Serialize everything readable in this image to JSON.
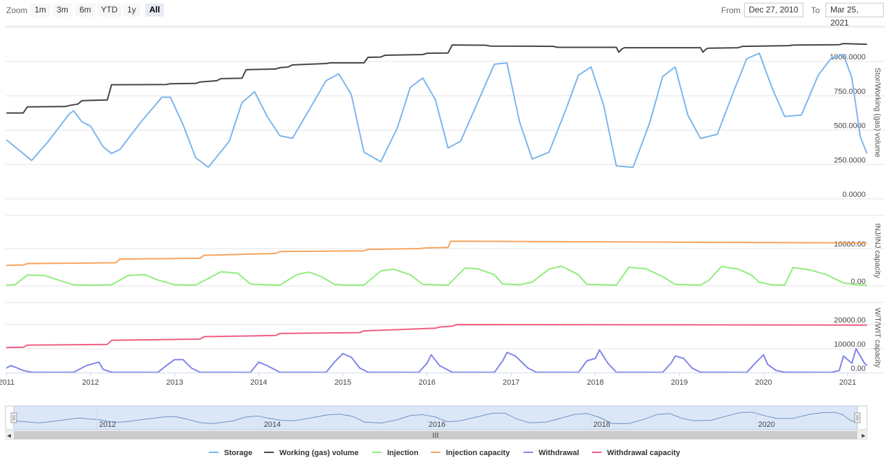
{
  "toolbar": {
    "zoom_label": "Zoom",
    "buttons": [
      "1m",
      "3m",
      "6m",
      "YTD",
      "1y",
      "All"
    ],
    "active_button": "All",
    "from_label": "From",
    "from_value": "Dec 27, 2010",
    "to_label": "To",
    "to_value": "Mar 25, 2021"
  },
  "colors": {
    "storage": "#7cb5ec",
    "working": "#434348",
    "injection": "#90ed7d",
    "injection_capacity": "#f7a35c",
    "withdrawal": "#8085e9",
    "withdrawal_capacity": "#f15c80",
    "navigator_fill": "#dbe7f7",
    "navigator_line": "#6f8fc0"
  },
  "legend": [
    {
      "key": "storage",
      "label": "Storage"
    },
    {
      "key": "working",
      "label": "Working (gas) volume"
    },
    {
      "key": "injection",
      "label": "Injection"
    },
    {
      "key": "injection_capacity",
      "label": "Injection capacity"
    },
    {
      "key": "withdrawal",
      "label": "Withdrawal"
    },
    {
      "key": "withdrawal_capacity",
      "label": "Withdrawal capacity"
    }
  ],
  "navigator": {
    "scrollbar_grip": "III",
    "year_labels": [
      "2012",
      "2014",
      "2016",
      "2018",
      "2020"
    ]
  },
  "chart_data": [
    {
      "type": "line",
      "ylabel": "Stor/Working (gas) volume",
      "ylim": [
        0,
        1000
      ],
      "yticks": [
        "0.0000",
        "250.0000",
        "500.0000",
        "750.0000",
        "1000.0000"
      ],
      "xlim": [
        2010.99,
        2021.23
      ],
      "series": [
        {
          "name": "Storage",
          "color_key": "storage",
          "x": [
            2011.0,
            2011.2,
            2011.3,
            2011.5,
            2011.75,
            2011.8,
            2011.9,
            2012.0,
            2012.15,
            2012.25,
            2012.35,
            2012.6,
            2012.85,
            2012.95,
            2013.1,
            2013.25,
            2013.4,
            2013.65,
            2013.8,
            2013.95,
            2014.1,
            2014.25,
            2014.4,
            2014.6,
            2014.8,
            2014.95,
            2015.1,
            2015.25,
            2015.45,
            2015.65,
            2015.8,
            2015.95,
            2016.1,
            2016.25,
            2016.4,
            2016.6,
            2016.8,
            2016.95,
            2017.1,
            2017.25,
            2017.45,
            2017.65,
            2017.8,
            2017.95,
            2018.1,
            2018.25,
            2018.45,
            2018.65,
            2018.8,
            2018.95,
            2019.1,
            2019.25,
            2019.45,
            2019.65,
            2019.8,
            2019.95,
            2020.1,
            2020.25,
            2020.45,
            2020.65,
            2020.8,
            2020.95,
            2021.05,
            2021.15,
            2021.23
          ],
          "y": [
            430,
            330,
            280,
            420,
            620,
            640,
            560,
            530,
            380,
            330,
            360,
            560,
            740,
            740,
            540,
            300,
            230,
            420,
            700,
            780,
            600,
            460,
            440,
            650,
            860,
            910,
            760,
            340,
            270,
            520,
            810,
            880,
            720,
            370,
            420,
            700,
            980,
            990,
            560,
            290,
            340,
            650,
            900,
            960,
            680,
            240,
            230,
            560,
            890,
            960,
            610,
            440,
            470,
            790,
            1020,
            1060,
            810,
            600,
            610,
            900,
            1020,
            1050,
            880,
            450,
            330
          ]
        },
        {
          "name": "Working (gas) volume",
          "color_key": "working",
          "x": [
            2011.0,
            2011.2,
            2011.25,
            2011.7,
            2011.75,
            2011.85,
            2011.9,
            2012.2,
            2012.25,
            2012.9,
            2012.95,
            2013.25,
            2013.3,
            2013.5,
            2013.55,
            2013.8,
            2013.85,
            2014.2,
            2014.25,
            2014.35,
            2014.4,
            2014.8,
            2014.85,
            2015.25,
            2015.3,
            2015.45,
            2015.5,
            2015.95,
            2016.0,
            2016.25,
            2016.3,
            2016.7,
            2016.75,
            2017.5,
            2017.55,
            2018.25,
            2018.28,
            2018.32,
            2018.35,
            2019.25,
            2019.28,
            2019.32,
            2019.35,
            2019.7,
            2019.75,
            2020.3,
            2020.35,
            2020.9,
            2020.95,
            2021.23
          ],
          "y": [
            625,
            625,
            670,
            672,
            680,
            690,
            715,
            720,
            830,
            832,
            838,
            840,
            850,
            860,
            875,
            878,
            940,
            945,
            955,
            960,
            975,
            985,
            990,
            990,
            1030,
            1032,
            1045,
            1050,
            1060,
            1062,
            1120,
            1118,
            1112,
            1110,
            1103,
            1103,
            1068,
            1093,
            1100,
            1100,
            1068,
            1092,
            1097,
            1100,
            1110,
            1115,
            1119,
            1122,
            1130,
            1125
          ]
        }
      ]
    },
    {
      "type": "line",
      "ylabel": "INJ/INJ capacity",
      "ylim": [
        0,
        14000
      ],
      "yticks": [
        "0.00",
        "10000.00"
      ],
      "xlim": [
        2010.99,
        2021.23
      ],
      "series": [
        {
          "name": "Injection capacity",
          "color_key": "injection_capacity",
          "x": [
            2011.0,
            2011.2,
            2011.25,
            2012.3,
            2012.35,
            2013.3,
            2013.35,
            2014.2,
            2014.25,
            2015.25,
            2015.3,
            2015.9,
            2016.0,
            2016.25,
            2016.28,
            2021.23
          ],
          "y": [
            5500,
            5600,
            6000,
            6200,
            7200,
            7400,
            8200,
            8700,
            9200,
            9400,
            9800,
            10000,
            10200,
            10300,
            12000,
            11500
          ]
        },
        {
          "name": "Injection",
          "color_key": "injection",
          "x": [
            2011.0,
            2011.1,
            2011.25,
            2011.45,
            2011.6,
            2011.8,
            2012.0,
            2012.25,
            2012.45,
            2012.65,
            2012.8,
            2013.0,
            2013.25,
            2013.45,
            2013.55,
            2013.75,
            2013.9,
            2014.1,
            2014.25,
            2014.45,
            2014.6,
            2014.75,
            2014.9,
            2015.05,
            2015.25,
            2015.45,
            2015.6,
            2015.8,
            2015.95,
            2016.1,
            2016.25,
            2016.45,
            2016.6,
            2016.8,
            2016.9,
            2017.1,
            2017.25,
            2017.45,
            2017.6,
            2017.8,
            2017.9,
            2018.1,
            2018.25,
            2018.4,
            2018.6,
            2018.8,
            2018.95,
            2019.1,
            2019.25,
            2019.35,
            2019.5,
            2019.7,
            2019.85,
            2019.95,
            2020.1,
            2020.25,
            2020.35,
            2020.55,
            2020.75,
            2020.95,
            2021.1,
            2021.23
          ],
          "y": [
            200,
            300,
            2900,
            2800,
            1700,
            300,
            200,
            300,
            2800,
            3000,
            1600,
            300,
            200,
            2600,
            3800,
            3400,
            500,
            300,
            200,
            3000,
            3700,
            2400,
            400,
            200,
            200,
            4000,
            4500,
            3000,
            400,
            300,
            200,
            4800,
            4600,
            3000,
            500,
            300,
            1000,
            4500,
            5300,
            3000,
            400,
            300,
            200,
            5000,
            4600,
            2500,
            400,
            300,
            200,
            1500,
            5200,
            4500,
            3000,
            1000,
            300,
            200,
            4900,
            4300,
            3000,
            800,
            300,
            200
          ]
        }
      ]
    },
    {
      "type": "line",
      "ylabel": "W/T/WIT capacity",
      "ylim": [
        0,
        24000
      ],
      "yticks": [
        "0.00",
        "10000.00",
        "20000.00"
      ],
      "xlim": [
        2010.99,
        2021.23
      ],
      "series": [
        {
          "name": "Withdrawal capacity",
          "color_key": "withdrawal_capacity",
          "x": [
            2011.0,
            2011.2,
            2011.25,
            2012.2,
            2012.25,
            2013.3,
            2013.35,
            2014.2,
            2014.25,
            2015.2,
            2015.25,
            2016.1,
            2016.15,
            2016.3,
            2016.35,
            2021.23
          ],
          "y": [
            10500,
            10600,
            11500,
            11800,
            13500,
            14000,
            15000,
            15500,
            16300,
            16700,
            17400,
            18500,
            19000,
            19300,
            20000,
            19800
          ]
        },
        {
          "name": "Withdrawal",
          "color_key": "withdrawal",
          "x": [
            2011.0,
            2011.05,
            2011.1,
            2011.2,
            2011.3,
            2011.6,
            2011.8,
            2011.95,
            2012.1,
            2012.15,
            2012.25,
            2012.8,
            2012.9,
            2013.0,
            2013.1,
            2013.2,
            2013.3,
            2013.9,
            2014.0,
            2014.1,
            2014.25,
            2014.8,
            2014.9,
            2015.0,
            2015.1,
            2015.2,
            2015.3,
            2015.9,
            2016.0,
            2016.05,
            2016.15,
            2016.3,
            2016.8,
            2016.9,
            2016.95,
            2017.05,
            2017.2,
            2017.3,
            2017.8,
            2017.9,
            2018.0,
            2018.05,
            2018.15,
            2018.25,
            2018.8,
            2018.9,
            2018.95,
            2019.05,
            2019.15,
            2019.25,
            2019.8,
            2019.9,
            2020.0,
            2020.05,
            2020.15,
            2020.25,
            2020.8,
            2020.9,
            2020.95,
            2021.05,
            2021.1,
            2021.2,
            2021.23
          ],
          "y": [
            2000,
            3000,
            2500,
            1000,
            300,
            200,
            300,
            3000,
            4500,
            1500,
            300,
            200,
            3000,
            5500,
            5500,
            2000,
            300,
            200,
            4500,
            3000,
            300,
            200,
            4500,
            8000,
            6500,
            2000,
            300,
            200,
            4000,
            7500,
            3000,
            300,
            200,
            5000,
            8500,
            7000,
            2000,
            300,
            200,
            5000,
            6000,
            9500,
            4000,
            300,
            200,
            4000,
            7000,
            6000,
            2000,
            300,
            200,
            4000,
            7500,
            3500,
            1000,
            300,
            200,
            1000,
            7000,
            4000,
            10000,
            4000,
            3000
          ]
        }
      ]
    }
  ]
}
